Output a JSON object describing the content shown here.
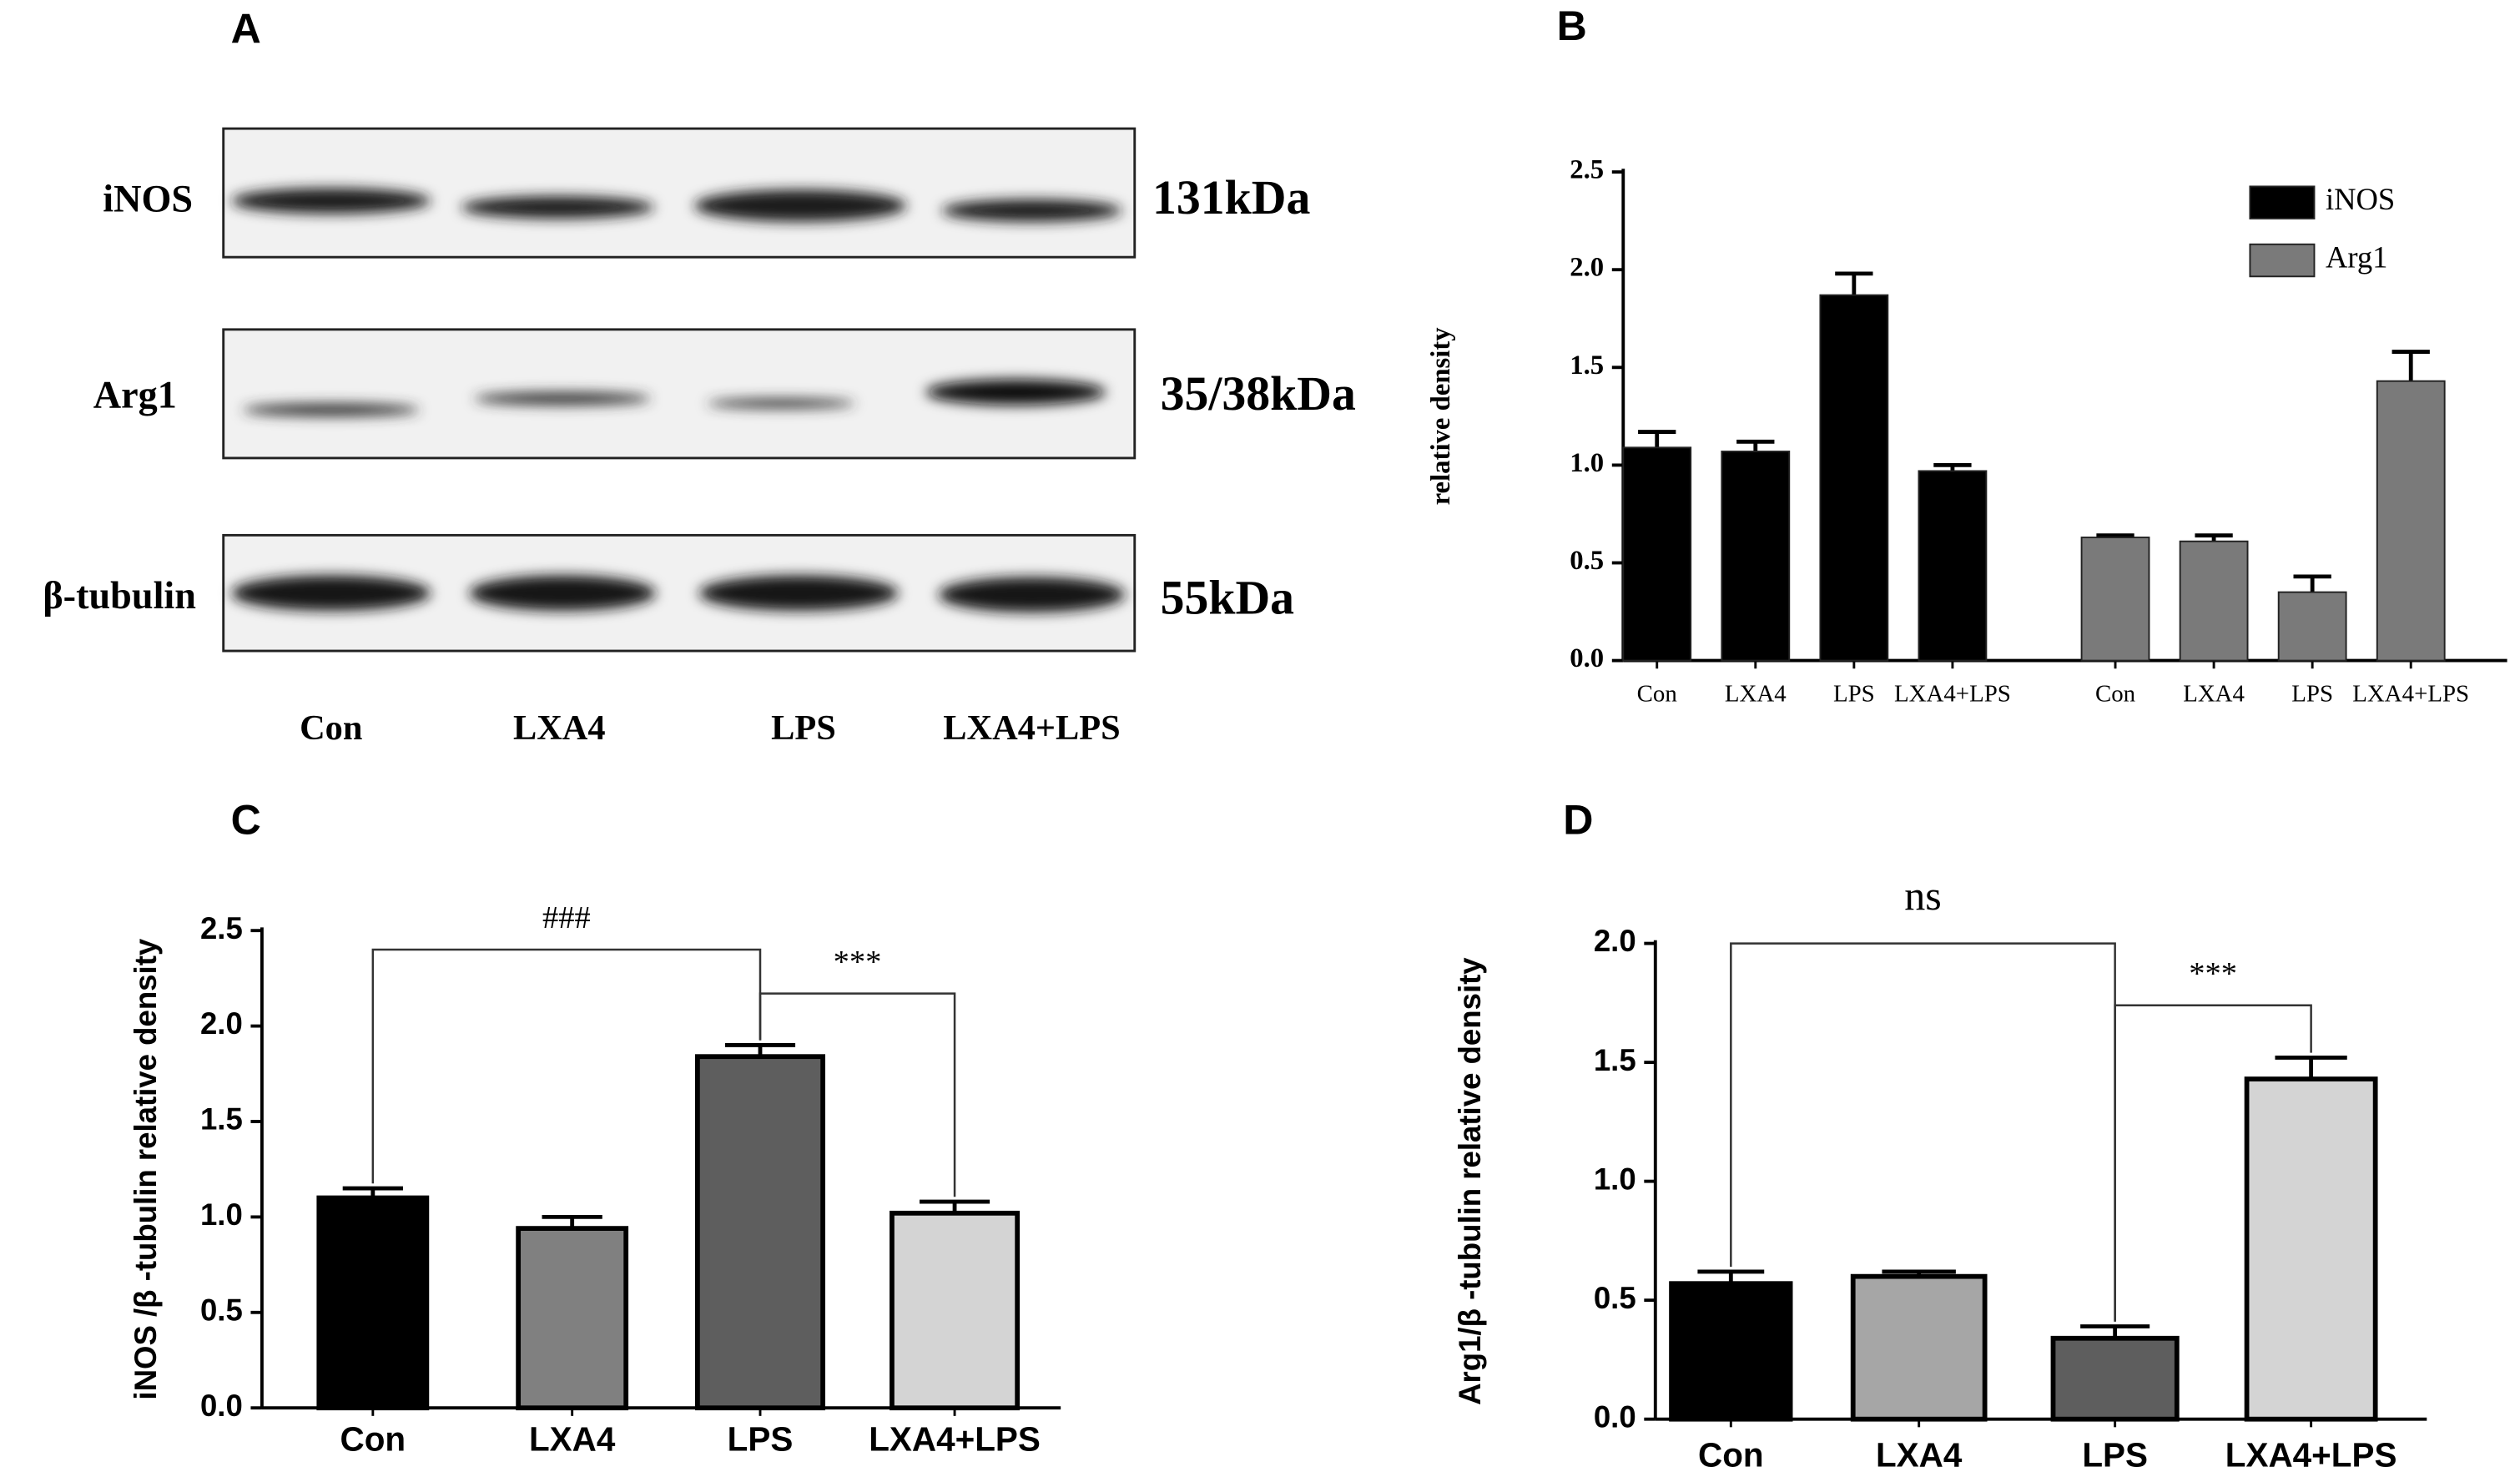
{
  "blot": {
    "panel": "A",
    "rows": [
      {
        "name": "iNOS",
        "size": "131kDa"
      },
      {
        "name": "Arg1",
        "size": "35/38kDa"
      },
      {
        "name": "β-tubulin",
        "size": "55kDa"
      }
    ],
    "lanes": [
      "Con",
      "LXA4",
      "LPS",
      "LXA4+LPS"
    ]
  },
  "chart_data": [
    {
      "type": "bar",
      "panel": "B",
      "ylabel": "relative density",
      "categories": [
        "Con",
        "LXA4",
        "LPS",
        "LXA4+LPS",
        "Con",
        "LXA4",
        "LPS",
        "LXA4+LPS"
      ],
      "series": [
        {
          "name": "iNOS",
          "color": "#000000",
          "values": [
            1.09,
            1.07,
            1.87,
            0.97,
            null,
            null,
            null,
            null
          ],
          "errors": [
            0.08,
            0.05,
            0.11,
            0.03,
            null,
            null,
            null,
            null
          ]
        },
        {
          "name": "Arg1",
          "color": "#7a7a7a",
          "values": [
            null,
            null,
            null,
            null,
            0.63,
            0.61,
            0.35,
            1.43
          ],
          "errors": [
            null,
            null,
            null,
            null,
            0.01,
            0.03,
            0.08,
            0.15
          ]
        }
      ],
      "ylim": [
        0,
        2.5
      ],
      "yticks": [
        {
          "value": 0,
          "label": "0.0"
        },
        {
          "value": 0.5,
          "label": "0.5"
        },
        {
          "value": 1,
          "label": "1.0"
        },
        {
          "value": 1.5,
          "label": "1.5"
        },
        {
          "value": 2,
          "label": "2.0"
        },
        {
          "value": 2.5,
          "label": "2.5"
        }
      ],
      "legend": "upper right"
    },
    {
      "type": "bar",
      "panel": "C",
      "ylabel": "iNOS /β -tubulin relative density",
      "categories": [
        "Con",
        "LXA4",
        "LPS",
        "LXA4+LPS"
      ],
      "series": [
        {
          "colors": [
            "#000000",
            "#808080",
            "#5e5e5e",
            "#d4d4d4"
          ],
          "values": [
            1.1,
            0.94,
            1.84,
            1.02
          ],
          "errors": [
            0.05,
            0.06,
            0.06,
            0.06
          ]
        }
      ],
      "ylim": [
        0,
        2.5
      ],
      "yticks": [
        {
          "value": 0,
          "label": "0.0"
        },
        {
          "value": 0.5,
          "label": "0.5"
        },
        {
          "value": 1,
          "label": "1.0"
        },
        {
          "value": 1.5,
          "label": "1.5"
        },
        {
          "value": 2,
          "label": "2.0"
        },
        {
          "value": 2.5,
          "label": "2.5"
        }
      ],
      "brackets": [
        {
          "from": 0,
          "to": 2,
          "y": 2.4,
          "label": "###"
        },
        {
          "from": 2,
          "to": 3,
          "y": 2.17,
          "label": "***"
        }
      ]
    },
    {
      "type": "bar",
      "panel": "D",
      "ylabel": "Arg1/β -tubulin relative density",
      "categories": [
        "Con",
        "LXA4",
        "LPS",
        "LXA4+LPS"
      ],
      "series": [
        {
          "colors": [
            "#000000",
            "#a6a6a6",
            "#5e5e5e",
            "#d4d4d4"
          ],
          "values": [
            0.57,
            0.6,
            0.34,
            1.43
          ],
          "errors": [
            0.05,
            0.02,
            0.05,
            0.09
          ]
        }
      ],
      "ylim": [
        0,
        2
      ],
      "yticks": [
        {
          "value": 0,
          "label": "0.0"
        },
        {
          "value": 0.5,
          "label": "0.5"
        },
        {
          "value": 1,
          "label": "1.0"
        },
        {
          "value": 1.5,
          "label": "1.5"
        },
        {
          "value": 2,
          "label": "2.0"
        }
      ],
      "brackets": [
        {
          "from": 0,
          "to": 2,
          "y": 2.0,
          "label": "ns"
        },
        {
          "from": 2,
          "to": 3,
          "y": 1.74,
          "label": "***"
        }
      ]
    }
  ]
}
